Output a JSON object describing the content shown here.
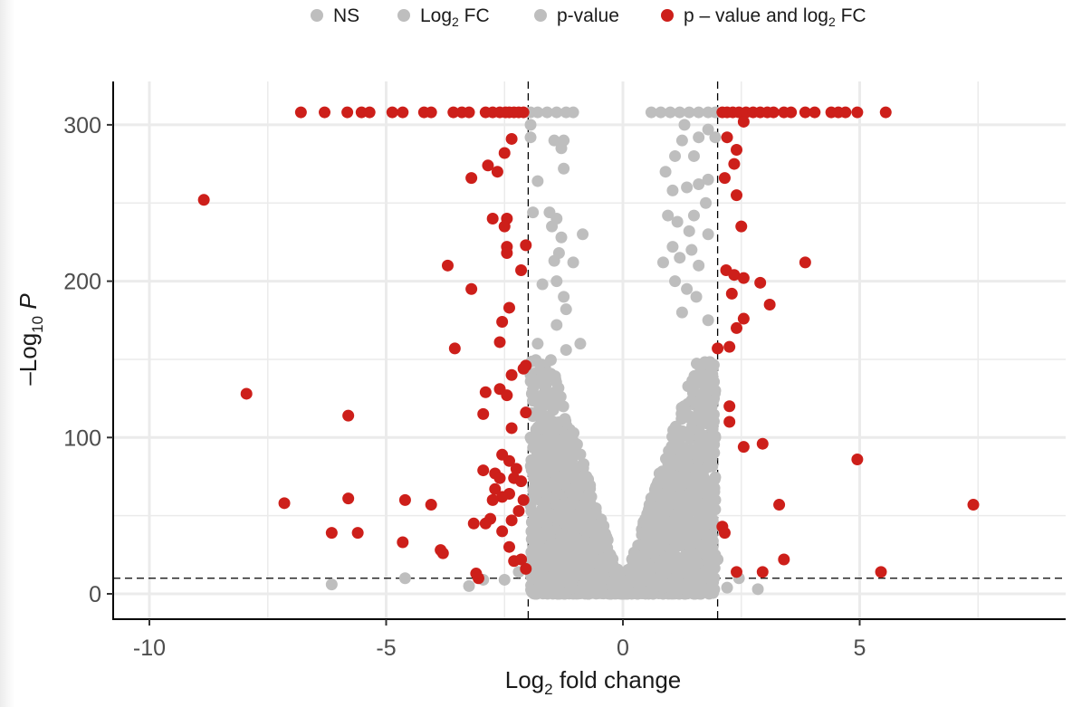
{
  "chart_data": {
    "type": "scatter",
    "subtype": "volcano",
    "title": "",
    "xlabel": "Log2 fold change",
    "ylabel": "-Log10 P",
    "xlim": [
      -10.8,
      9.2
    ],
    "ylim": [
      -8,
      325
    ],
    "x_ticks": [
      -10,
      -5,
      0,
      5
    ],
    "x_tick_labels": [
      "-10",
      "-5",
      "0",
      "5"
    ],
    "y_ticks": [
      0,
      100,
      200,
      300
    ],
    "y_tick_labels": [
      "0",
      "100",
      "200",
      "300"
    ],
    "grid": true,
    "legend_position": "top",
    "thresholds": {
      "log2fc": [
        -2,
        2
      ],
      "neg_log10_p": 10
    },
    "colors": {
      "NS": "#BEBEBE",
      "Log2 FC": "#BEBEBE",
      "p-value": "#BEBEBE",
      "p - value and log2 FC": "#CD1F1A"
    },
    "legend": [
      {
        "key": "NS",
        "label": "NS",
        "sub": "",
        "after": "",
        "color": "#BEBEBE"
      },
      {
        "key": "Log2 FC",
        "label": "Log",
        "sub": "2",
        "after": " FC",
        "color": "#BEBEBE"
      },
      {
        "key": "p-value",
        "label": "p-value",
        "sub": "",
        "after": "",
        "color": "#BEBEBE"
      },
      {
        "key": "p - value and log2 FC",
        "label": "p – value and log",
        "sub": "2",
        "after": " FC",
        "color": "#CD1F1A"
      }
    ],
    "series": [
      {
        "name": "p - value and log2 FC",
        "color": "#CD1F1A",
        "points": [
          [
            -6.8,
            308
          ],
          [
            -6.3,
            308
          ],
          [
            -5.82,
            308
          ],
          [
            -5.52,
            308
          ],
          [
            -5.35,
            308
          ],
          [
            -4.87,
            308
          ],
          [
            -4.65,
            308
          ],
          [
            -4.2,
            308
          ],
          [
            -4.05,
            308
          ],
          [
            -3.58,
            308
          ],
          [
            -3.4,
            308
          ],
          [
            -3.25,
            308
          ],
          [
            -2.9,
            308
          ],
          [
            -2.75,
            308
          ],
          [
            -2.6,
            308
          ],
          [
            -2.48,
            308
          ],
          [
            -2.4,
            308
          ],
          [
            -2.3,
            308
          ],
          [
            -2.2,
            308
          ],
          [
            -2.1,
            308
          ],
          [
            2.1,
            308
          ],
          [
            2.2,
            308
          ],
          [
            2.32,
            308
          ],
          [
            2.45,
            308
          ],
          [
            2.6,
            308
          ],
          [
            2.75,
            308
          ],
          [
            2.9,
            308
          ],
          [
            3.05,
            308
          ],
          [
            3.18,
            308
          ],
          [
            3.4,
            308
          ],
          [
            3.55,
            308
          ],
          [
            3.85,
            308
          ],
          [
            4.05,
            308
          ],
          [
            4.4,
            308
          ],
          [
            4.55,
            308
          ],
          [
            4.7,
            308
          ],
          [
            4.95,
            308
          ],
          [
            5.55,
            308
          ],
          [
            2.55,
            302
          ],
          [
            -8.85,
            252
          ],
          [
            -2.35,
            291
          ],
          [
            -2.5,
            282
          ],
          [
            -2.85,
            274
          ],
          [
            -2.65,
            270
          ],
          [
            -3.2,
            266
          ],
          [
            -2.75,
            240
          ],
          [
            -2.45,
            240
          ],
          [
            -2.5,
            235
          ],
          [
            -2.45,
            222
          ],
          [
            -2.05,
            223
          ],
          [
            -2.45,
            218
          ],
          [
            -3.7,
            210
          ],
          [
            -2.15,
            207
          ],
          [
            -3.2,
            195
          ],
          [
            -2.4,
            183
          ],
          [
            -2.55,
            174
          ],
          [
            -2.6,
            161
          ],
          [
            -3.55,
            157
          ],
          [
            -2.05,
            146
          ],
          [
            -2.1,
            144
          ],
          [
            -2.35,
            140
          ],
          [
            -2.6,
            131
          ],
          [
            -7.95,
            128
          ],
          [
            -2.9,
            129
          ],
          [
            -2.45,
            127
          ],
          [
            -2.05,
            116
          ],
          [
            -2.95,
            115
          ],
          [
            -5.8,
            114
          ],
          [
            -2.35,
            106
          ],
          [
            -2.55,
            89
          ],
          [
            -2.4,
            85
          ],
          [
            -2.25,
            80
          ],
          [
            -2.95,
            79
          ],
          [
            -2.7,
            77
          ],
          [
            -2.6,
            74
          ],
          [
            -2.3,
            74
          ],
          [
            -2.15,
            72
          ],
          [
            -2.7,
            67
          ],
          [
            -2.4,
            64
          ],
          [
            -2.1,
            60
          ],
          [
            -2.55,
            62
          ],
          [
            -2.75,
            60
          ],
          [
            -7.15,
            58
          ],
          [
            -5.8,
            61
          ],
          [
            -4.6,
            60
          ],
          [
            -4.05,
            57
          ],
          [
            -2.2,
            53
          ],
          [
            -2.35,
            47
          ],
          [
            -2.8,
            48
          ],
          [
            -3.15,
            45
          ],
          [
            -2.9,
            45
          ],
          [
            -6.15,
            39
          ],
          [
            -5.6,
            39
          ],
          [
            -4.65,
            33
          ],
          [
            -3.85,
            28
          ],
          [
            -3.8,
            26
          ],
          [
            -2.55,
            40
          ],
          [
            -2.4,
            30
          ],
          [
            -2.3,
            21
          ],
          [
            -2.15,
            22
          ],
          [
            -2.05,
            16
          ],
          [
            -3.05,
            10
          ],
          [
            -3.1,
            13
          ],
          [
            2.2,
            292
          ],
          [
            2.4,
            284
          ],
          [
            2.35,
            275
          ],
          [
            2.15,
            266
          ],
          [
            2.4,
            255
          ],
          [
            2.5,
            235
          ],
          [
            2.18,
            207
          ],
          [
            2.35,
            204
          ],
          [
            2.55,
            202
          ],
          [
            2.9,
            199
          ],
          [
            3.85,
            212
          ],
          [
            2.3,
            192
          ],
          [
            3.1,
            185
          ],
          [
            2.55,
            176
          ],
          [
            2.4,
            170
          ],
          [
            2.25,
            158
          ],
          [
            2.0,
            157
          ],
          [
            2.25,
            120
          ],
          [
            2.25,
            110
          ],
          [
            2.55,
            94
          ],
          [
            2.95,
            96
          ],
          [
            4.95,
            86
          ],
          [
            2.1,
            43
          ],
          [
            2.15,
            39
          ],
          [
            3.3,
            57
          ],
          [
            7.4,
            57
          ],
          [
            3.4,
            22
          ],
          [
            2.4,
            14
          ],
          [
            2.95,
            14
          ],
          [
            5.45,
            14
          ]
        ]
      },
      {
        "name": "NS / Log2 FC / p-value",
        "color": "#BEBEBE",
        "points": [
          [
            -1.95,
            308
          ],
          [
            -1.8,
            308
          ],
          [
            -1.6,
            308
          ],
          [
            -1.4,
            308
          ],
          [
            -1.2,
            308
          ],
          [
            -1.05,
            308
          ],
          [
            -1.95,
            300
          ],
          [
            -1.95,
            292
          ],
          [
            -1.45,
            290
          ],
          [
            -1.25,
            290
          ],
          [
            -1.3,
            285
          ],
          [
            -1.25,
            272
          ],
          [
            -1.8,
            264
          ],
          [
            -1.9,
            244
          ],
          [
            -1.55,
            244
          ],
          [
            -1.4,
            240
          ],
          [
            -1.5,
            235
          ],
          [
            -1.3,
            228
          ],
          [
            -0.85,
            230
          ],
          [
            -1.35,
            218
          ],
          [
            -1.45,
            213
          ],
          [
            -1.05,
            212
          ],
          [
            -1.4,
            200
          ],
          [
            -1.7,
            198
          ],
          [
            -1.25,
            190
          ],
          [
            -1.2,
            182
          ],
          [
            -1.4,
            172
          ],
          [
            -1.8,
            160
          ],
          [
            -0.9,
            160
          ],
          [
            -1.2,
            156
          ],
          [
            0.6,
            308
          ],
          [
            0.8,
            308
          ],
          [
            1.0,
            308
          ],
          [
            1.2,
            308
          ],
          [
            1.4,
            308
          ],
          [
            1.6,
            308
          ],
          [
            1.8,
            308
          ],
          [
            1.95,
            308
          ],
          [
            1.3,
            300
          ],
          [
            1.8,
            297
          ],
          [
            1.95,
            292
          ],
          [
            1.25,
            290
          ],
          [
            1.6,
            292
          ],
          [
            1.1,
            280
          ],
          [
            1.5,
            280
          ],
          [
            0.9,
            270
          ],
          [
            1.05,
            258
          ],
          [
            1.35,
            260
          ],
          [
            1.6,
            262
          ],
          [
            1.8,
            265
          ],
          [
            1.75,
            250
          ],
          [
            1.5,
            242
          ],
          [
            0.95,
            242
          ],
          [
            1.15,
            238
          ],
          [
            1.4,
            232
          ],
          [
            1.8,
            230
          ],
          [
            1.05,
            222
          ],
          [
            1.45,
            220
          ],
          [
            1.2,
            215
          ],
          [
            1.6,
            210
          ],
          [
            0.85,
            212
          ],
          [
            1.1,
            200
          ],
          [
            1.35,
            195
          ],
          [
            1.55,
            190
          ],
          [
            1.25,
            180
          ],
          [
            1.8,
            175
          ],
          [
            -6.15,
            6
          ],
          [
            -4.6,
            10
          ],
          [
            -2.95,
            9
          ],
          [
            -3.25,
            5
          ],
          [
            -2.5,
            9
          ],
          [
            2.45,
            10
          ],
          [
            2.85,
            3
          ],
          [
            2.2,
            4
          ],
          [
            -2.2,
            14
          ],
          [
            -1.95,
            20
          ],
          [
            2.0,
            22
          ],
          [
            1.95,
            60
          ],
          [
            1.95,
            100
          ],
          [
            1.95,
            130
          ],
          [
            -1.95,
            140
          ],
          [
            -1.95,
            100
          ]
        ]
      }
    ],
    "dense_cloud": {
      "description": "Dense V-shaped band of gray points centred on x=0 spanning roughly |log2FC| 0.3-2 with -log10 P from ~0 up to ~150, meeting at the origin",
      "color": "#BEBEBE"
    }
  }
}
